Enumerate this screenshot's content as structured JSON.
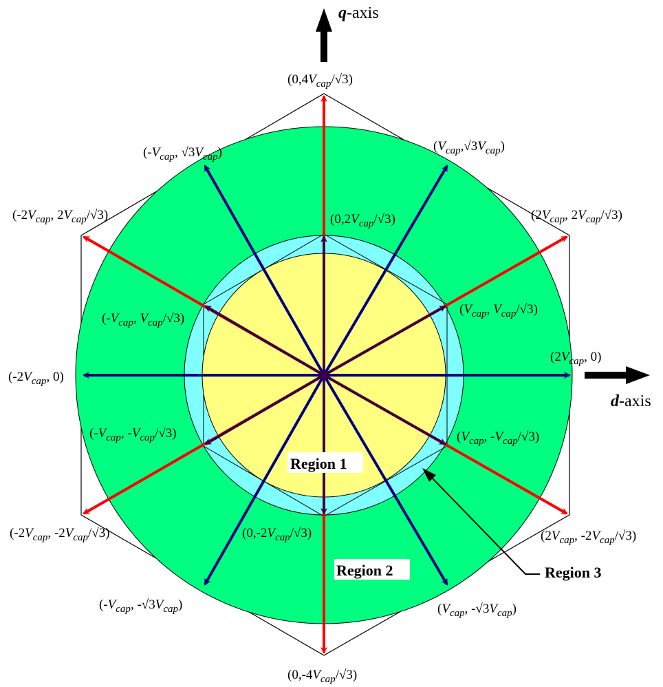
{
  "axes": {
    "q_symbol": "q",
    "q_suffix": "-axis",
    "d_symbol": "d",
    "d_suffix": "-axis"
  },
  "regions": {
    "region1": "Region 1",
    "region2": "Region 2",
    "region3": "Region 3"
  },
  "vector_labels": [
    {
      "id": "top",
      "parts": [
        "(0,4",
        "V",
        "cap",
        "/√3)"
      ]
    },
    {
      "id": "bottom",
      "parts": [
        "(0,-4",
        "V",
        "cap",
        "/√3)"
      ]
    },
    {
      "id": "upper-left",
      "parts": [
        "(-",
        "V",
        "cap",
        ", √3",
        "V",
        "cap",
        ")"
      ]
    },
    {
      "id": "upper-right",
      "parts": [
        "(",
        "V",
        "cap",
        ",√3",
        "V",
        "cap",
        ")"
      ]
    },
    {
      "id": "left-top",
      "parts": [
        "(-2",
        "V",
        "cap",
        ", 2",
        "V",
        "cap",
        "/√3)"
      ]
    },
    {
      "id": "right-top",
      "parts": [
        "(2",
        "V",
        "cap",
        ", 2",
        "V",
        "cap",
        "/√3)"
      ]
    },
    {
      "id": "inner-top",
      "parts": [
        "(0,2",
        "V",
        "cap",
        "/√3)"
      ]
    },
    {
      "id": "inner-ul",
      "parts": [
        "(-",
        "V",
        "cap",
        ", ",
        "V",
        "cap",
        "/√3)"
      ]
    },
    {
      "id": "inner-ur",
      "parts": [
        "(",
        "V",
        "cap",
        ", ",
        "V",
        "cap",
        "/√3)"
      ]
    },
    {
      "id": "left",
      "parts": [
        "(-2",
        "V",
        "cap",
        ", 0)"
      ]
    },
    {
      "id": "right",
      "parts": [
        "(2",
        "V",
        "cap",
        ", 0)"
      ]
    },
    {
      "id": "inner-ll",
      "parts": [
        "(-",
        "V",
        "cap",
        ", -",
        "V",
        "cap",
        "/√3)"
      ]
    },
    {
      "id": "inner-lr",
      "parts": [
        "(",
        "V",
        "cap",
        ", -",
        "V",
        "cap",
        "/√3)"
      ]
    },
    {
      "id": "left-bottom",
      "parts": [
        "(-2",
        "V",
        "cap",
        ", -2",
        "V",
        "cap",
        "/√3)"
      ]
    },
    {
      "id": "inner-bottom",
      "parts": [
        "(0,-2",
        "V",
        "cap",
        "/√3)"
      ]
    },
    {
      "id": "right-bottom",
      "parts": [
        "(2",
        "V",
        "cap",
        ", -2",
        "V",
        "cap",
        "/√3)"
      ]
    },
    {
      "id": "lower-left",
      "parts": [
        "(-",
        "V",
        "cap",
        ", -√3",
        "V",
        "cap",
        ")"
      ]
    },
    {
      "id": "lower-right",
      "parts": [
        "(",
        "V",
        "cap",
        ", -√3",
        "V",
        "cap",
        ")"
      ]
    }
  ],
  "colors": {
    "outer_circle": "#00ff80",
    "middle_circle": "#80ffff",
    "inner_circle": "#ffff80",
    "red_vector": "#ff0000",
    "blue_vector": "#000080",
    "inner_vector": "#400040",
    "axis_arrow": "#000000"
  }
}
